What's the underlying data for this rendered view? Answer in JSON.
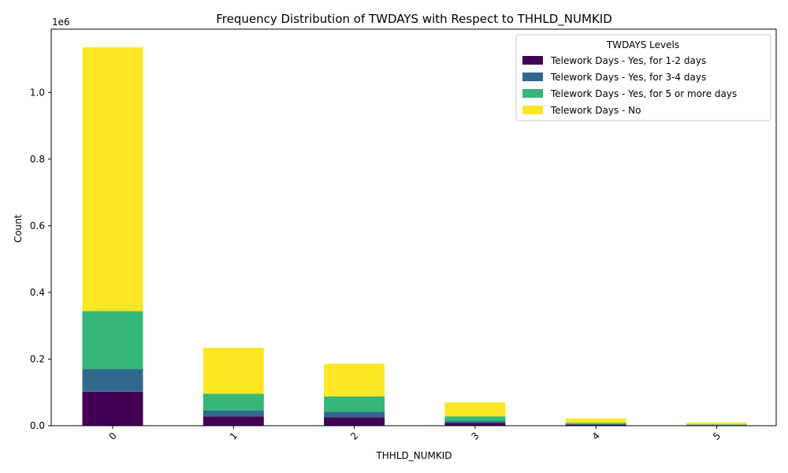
{
  "chart_data": {
    "type": "bar",
    "stacked": true,
    "title": "Frequency Distribution of TWDAYS with Respect to THHLD_NUMKID",
    "xlabel": "THHLD_NUMKID",
    "ylabel": "Count",
    "offset_text": "1e6",
    "categories": [
      "0",
      "1",
      "2",
      "3",
      "4",
      "5"
    ],
    "ylim": [
      0,
      1.19
    ],
    "yticks": [
      "0.0",
      "0.2",
      "0.4",
      "0.6",
      "0.8",
      "1.0"
    ],
    "legend_title": "TWDAYS Levels",
    "legend_position": "top-right",
    "grid": false,
    "series": [
      {
        "name": "Telework Days - Yes, for 1-2 days",
        "color": "#440154",
        "values": [
          0.102,
          0.028,
          0.025,
          0.009,
          0.003,
          0.0015
        ]
      },
      {
        "name": "Telework Days - Yes, for 3-4 days",
        "color": "#31688e",
        "values": [
          0.068,
          0.018,
          0.017,
          0.005,
          0.002,
          0.0008
        ]
      },
      {
        "name": "Telework Days - Yes, for 5 or more days",
        "color": "#35b779",
        "values": [
          0.174,
          0.05,
          0.046,
          0.014,
          0.004,
          0.0017
        ]
      },
      {
        "name": "Telework Days - No",
        "color": "#fde725",
        "values": [
          0.792,
          0.138,
          0.098,
          0.042,
          0.013,
          0.006
        ]
      }
    ]
  }
}
